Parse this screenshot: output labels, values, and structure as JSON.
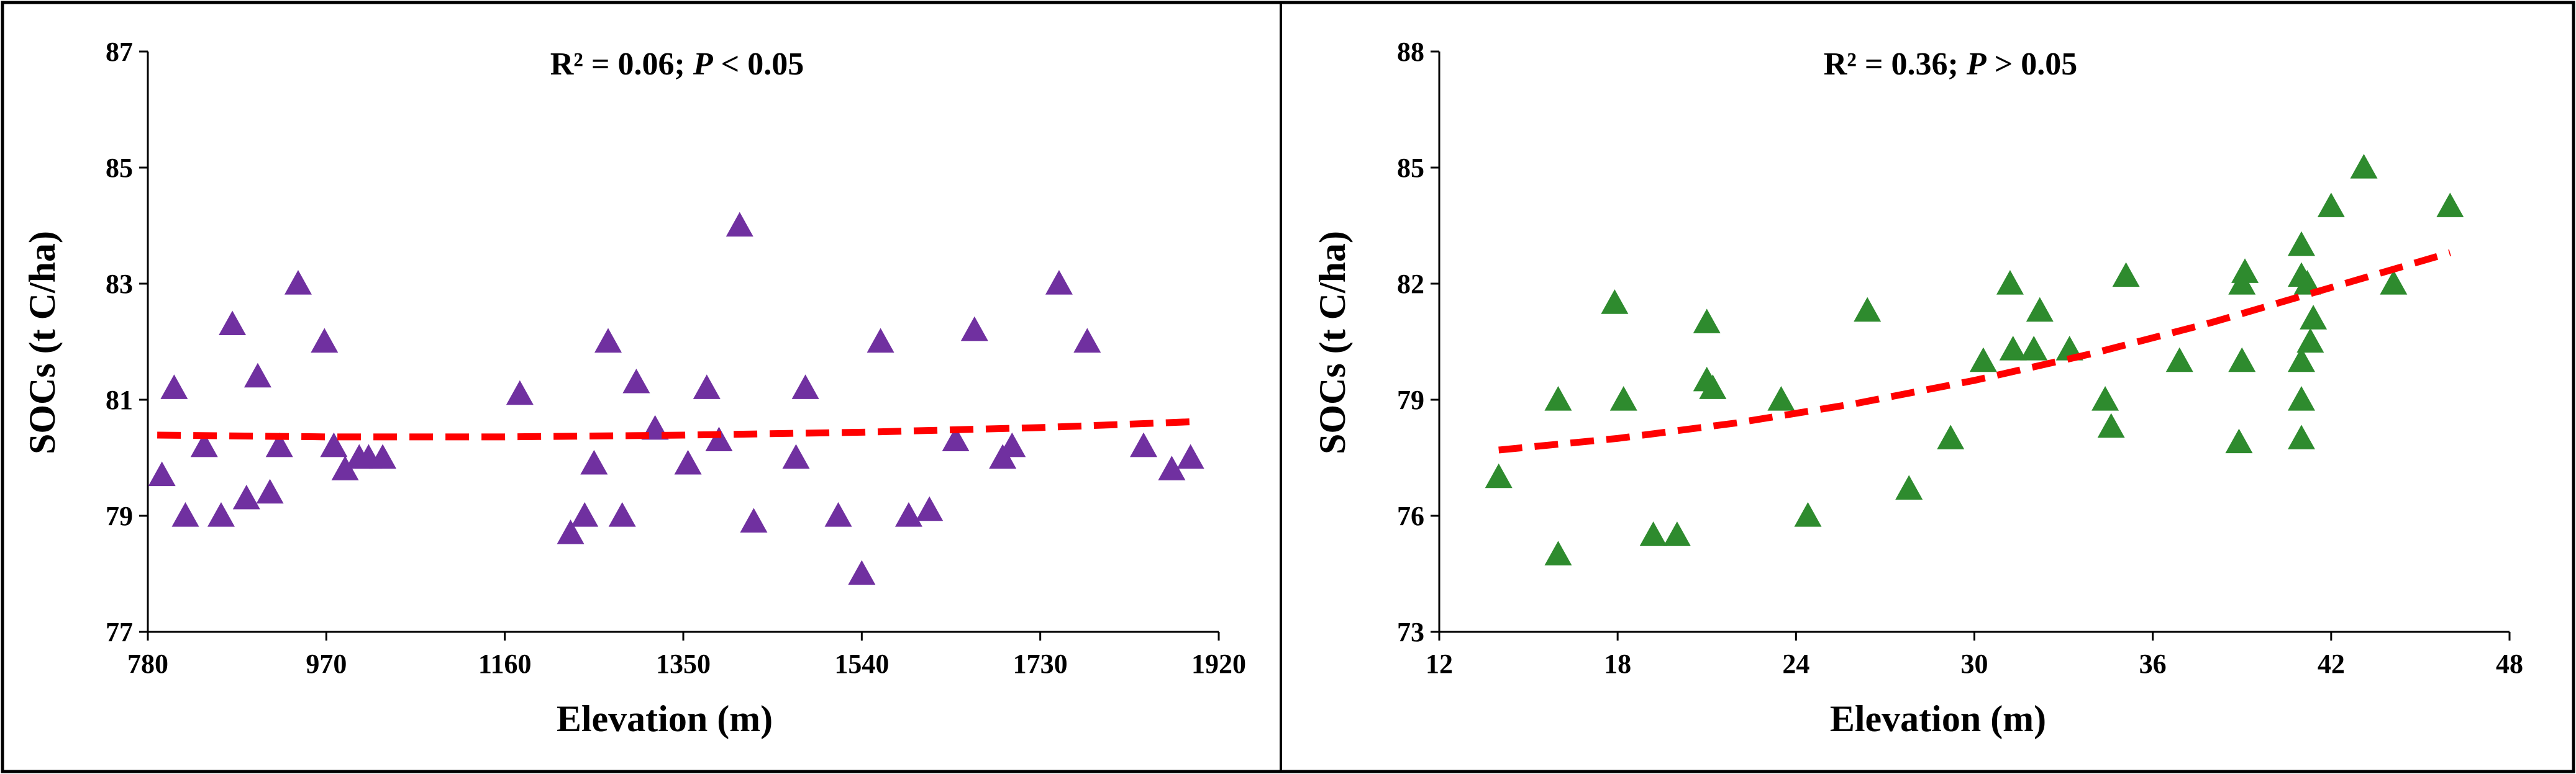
{
  "chart_data": [
    {
      "type": "scatter",
      "xlabel": "Elevation (m)",
      "ylabel": "SOCs (t C/ha)",
      "annotation_prefix": "R² = 0.06; ",
      "annotation_italic": "P",
      "annotation_suffix": " < 0.05",
      "xlim": [
        780,
        1920
      ],
      "ylim": [
        77,
        87
      ],
      "xticks": [
        780,
        970,
        1160,
        1350,
        1540,
        1730,
        1920
      ],
      "yticks": [
        77,
        79,
        81,
        83,
        85,
        87
      ],
      "marker": "triangle",
      "color": "#7030A0",
      "trend_color": "#FF0000",
      "trend": [
        [
          790,
          80.39
        ],
        [
          970,
          80.36
        ],
        [
          1160,
          80.36
        ],
        [
          1350,
          80.39
        ],
        [
          1540,
          80.44
        ],
        [
          1730,
          80.52
        ],
        [
          1890,
          80.62
        ]
      ],
      "x": [
        795,
        808,
        820,
        840,
        858,
        870,
        885,
        897,
        910,
        920,
        940,
        968,
        978,
        990,
        1005,
        1015,
        1030,
        1176,
        1230,
        1245,
        1255,
        1270,
        1285,
        1300,
        1320,
        1355,
        1375,
        1388,
        1410,
        1425,
        1470,
        1480,
        1515,
        1540,
        1560,
        1590,
        1612,
        1640,
        1660,
        1690,
        1700,
        1750,
        1780,
        1840,
        1870,
        1890
      ],
      "y": [
        79.7,
        81.2,
        79.0,
        80.2,
        79.0,
        82.3,
        79.3,
        81.4,
        79.4,
        80.2,
        83.0,
        82.0,
        80.2,
        79.8,
        80.0,
        80.0,
        80.0,
        81.1,
        78.7,
        79.0,
        79.9,
        82.0,
        79.0,
        81.3,
        80.5,
        79.9,
        81.2,
        80.3,
        84.0,
        78.9,
        80.0,
        81.2,
        79.0,
        78.0,
        82.0,
        79.0,
        79.1,
        80.3,
        82.2,
        80.0,
        80.2,
        83.0,
        82.0,
        80.2,
        79.8,
        80.0
      ]
    },
    {
      "type": "scatter",
      "xlabel": "Elevation (m)",
      "ylabel": "SOCs (t C/ha)",
      "annotation_prefix": "R² = 0.36; ",
      "annotation_italic": "P",
      "annotation_suffix": " > 0.05",
      "xlim": [
        12,
        48
      ],
      "ylim": [
        73,
        88
      ],
      "xticks": [
        12,
        18,
        24,
        30,
        36,
        42,
        48
      ],
      "yticks": [
        73,
        76,
        79,
        82,
        85,
        88
      ],
      "marker": "triangle",
      "color": "#2E8B2E",
      "trend_color": "#FF0000",
      "trend": [
        [
          14,
          77.7
        ],
        [
          18,
          78.0
        ],
        [
          22,
          78.4
        ],
        [
          26,
          78.9
        ],
        [
          30,
          79.5
        ],
        [
          34,
          80.2
        ],
        [
          38,
          81.0
        ],
        [
          42,
          81.9
        ],
        [
          46,
          82.8
        ]
      ],
      "x": [
        14.0,
        16.0,
        16.0,
        17.9,
        18.2,
        19.2,
        20.0,
        21.0,
        21.0,
        21.2,
        23.5,
        24.4,
        26.4,
        27.8,
        29.2,
        30.3,
        31.2,
        31.3,
        32.2,
        32.0,
        33.2,
        34.4,
        34.6,
        35.1,
        36.9,
        38.9,
        39.0,
        39.1,
        39.0,
        41.0,
        41.0,
        41.0,
        41.0,
        41.0,
        41.2,
        41.3,
        41.4,
        42.0,
        43.1,
        44.1,
        46.0
      ],
      "y": [
        77.0,
        75.0,
        79.0,
        81.5,
        79.0,
        75.5,
        75.5,
        81.0,
        79.5,
        79.3,
        79.0,
        76.0,
        81.3,
        76.7,
        78.0,
        80.0,
        82.0,
        80.3,
        81.3,
        80.3,
        80.3,
        79.0,
        78.3,
        82.2,
        80.0,
        77.9,
        82.0,
        82.3,
        80.0,
        83.0,
        82.2,
        80.0,
        79.0,
        78.0,
        82.0,
        80.5,
        81.1,
        84.0,
        85.0,
        82.0,
        84.0
      ]
    }
  ]
}
